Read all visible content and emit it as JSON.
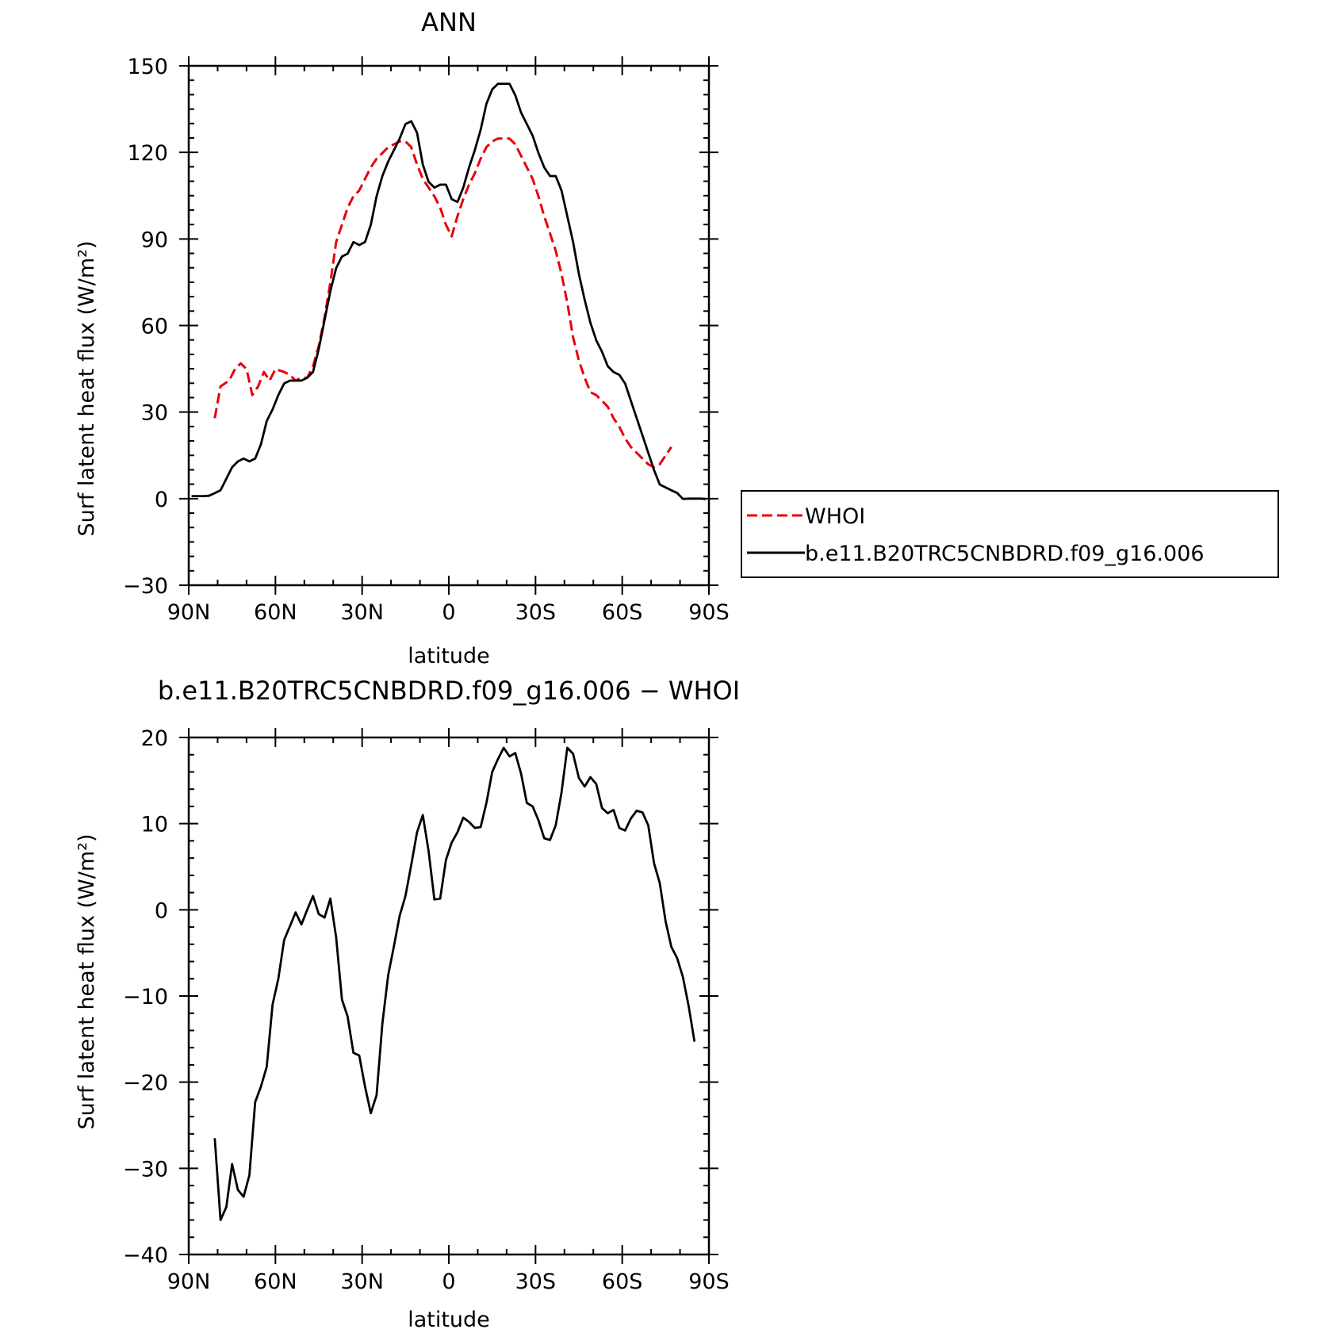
{
  "chart_data": [
    {
      "type": "line",
      "title": "ANN",
      "xlabel": "latitude",
      "ylabel": "Surf latent heat flux (W/m²)",
      "xlim": [
        90,
        -90
      ],
      "ylim": [
        -30,
        150
      ],
      "x_ticks": [
        {
          "value": 90,
          "label": "90N"
        },
        {
          "value": 60,
          "label": "60N"
        },
        {
          "value": 30,
          "label": "30N"
        },
        {
          "value": 0,
          "label": "0"
        },
        {
          "value": -30,
          "label": "30S"
        },
        {
          "value": -60,
          "label": "60S"
        },
        {
          "value": -90,
          "label": "90S"
        }
      ],
      "y_ticks": [
        {
          "value": 150,
          "label": "150"
        },
        {
          "value": 120,
          "label": "120"
        },
        {
          "value": 90,
          "label": "90"
        },
        {
          "value": 60,
          "label": "60"
        },
        {
          "value": 30,
          "label": "30"
        },
        {
          "value": 0,
          "label": "0"
        },
        {
          "value": -30,
          "label": "−30"
        }
      ],
      "legend": {
        "placement": "right"
      },
      "series": [
        {
          "name": "WHOI",
          "color": "#e8000b",
          "dash": "dashed",
          "points": [
            [
              81,
              27.9
            ],
            [
              79,
              38.9
            ],
            [
              76,
              40.9
            ],
            [
              74,
              44.9
            ],
            [
              72,
              46.9
            ],
            [
              70,
              44.9
            ],
            [
              68,
              35.9
            ],
            [
              66,
              38.9
            ],
            [
              64,
              43.9
            ],
            [
              62,
              40.9
            ],
            [
              60,
              44.9
            ],
            [
              57,
              43.9
            ],
            [
              55,
              42.9
            ],
            [
              53,
              40.9
            ],
            [
              51,
              41.9
            ],
            [
              49,
              41.9
            ],
            [
              47,
              45.9
            ],
            [
              45,
              52.9
            ],
            [
              43,
              62.9
            ],
            [
              41,
              74.9
            ],
            [
              39,
              88.9
            ],
            [
              37,
              94.9
            ],
            [
              35,
              100.8
            ],
            [
              33,
              104.8
            ],
            [
              31,
              106.8
            ],
            [
              29,
              110.8
            ],
            [
              27,
              114.8
            ],
            [
              25,
              117.8
            ],
            [
              23,
              119.8
            ],
            [
              21,
              121.8
            ],
            [
              19,
              122.8
            ],
            [
              17,
              123.8
            ],
            [
              15,
              123.8
            ],
            [
              13,
              121.8
            ],
            [
              11,
              115.8
            ],
            [
              9,
              110.8
            ],
            [
              7,
              107.8
            ],
            [
              5,
              104.8
            ],
            [
              3,
              100.8
            ],
            [
              1,
              94.9
            ],
            [
              -1,
              90.9
            ],
            [
              -3,
              97.9
            ],
            [
              -5,
              103.8
            ],
            [
              -7,
              108.8
            ],
            [
              -9,
              112.8
            ],
            [
              -11,
              117.8
            ],
            [
              -13,
              121.8
            ],
            [
              -15,
              123.8
            ],
            [
              -17,
              124.8
            ],
            [
              -19,
              124.8
            ],
            [
              -21,
              124.8
            ],
            [
              -23,
              122.8
            ],
            [
              -25,
              118.8
            ],
            [
              -27,
              114.8
            ],
            [
              -29,
              110.8
            ],
            [
              -31,
              104.8
            ],
            [
              -33,
              97.9
            ],
            [
              -35,
              91.9
            ],
            [
              -37,
              85.9
            ],
            [
              -39,
              77.9
            ],
            [
              -41,
              67.9
            ],
            [
              -43,
              55.9
            ],
            [
              -45,
              47.9
            ],
            [
              -47,
              41.9
            ],
            [
              -49,
              36.9
            ],
            [
              -51,
              35.9
            ],
            [
              -53,
              33.9
            ],
            [
              -55,
              31.9
            ],
            [
              -57,
              27.9
            ],
            [
              -59,
              24.9
            ],
            [
              -61,
              20.9
            ],
            [
              -63,
              17.9
            ],
            [
              -65,
              15.9
            ],
            [
              -67,
              13.9
            ],
            [
              -69,
              11.9
            ],
            [
              -71,
              10.9
            ],
            [
              -73,
              11.9
            ],
            [
              -75,
              14.9
            ],
            [
              -77,
              17.9
            ]
          ]
        },
        {
          "name": "b.e11.B20TRC5CNBDRD.f09_g16.006",
          "color": "#000000",
          "dash": "solid",
          "points": [
            [
              89,
              0.9
            ],
            [
              87,
              0.9
            ],
            [
              85,
              0.9
            ],
            [
              83,
              1.0
            ],
            [
              81,
              1.9
            ],
            [
              79,
              2.9
            ],
            [
              77,
              6.9
            ],
            [
              75,
              10.9
            ],
            [
              73,
              12.9
            ],
            [
              71,
              13.9
            ],
            [
              69,
              12.9
            ],
            [
              67,
              13.9
            ],
            [
              65,
              18.9
            ],
            [
              63,
              26.9
            ],
            [
              61,
              30.9
            ],
            [
              59,
              35.9
            ],
            [
              57,
              39.9
            ],
            [
              55,
              40.9
            ],
            [
              53,
              40.9
            ],
            [
              51,
              40.9
            ],
            [
              49,
              41.9
            ],
            [
              47,
              43.9
            ],
            [
              45,
              51.9
            ],
            [
              43,
              61.9
            ],
            [
              41,
              71.9
            ],
            [
              39,
              79.9
            ],
            [
              37,
              83.9
            ],
            [
              35,
              84.9
            ],
            [
              33,
              88.9
            ],
            [
              31,
              87.9
            ],
            [
              29,
              88.9
            ],
            [
              27,
              94.9
            ],
            [
              25,
              104.8
            ],
            [
              23,
              111.8
            ],
            [
              21,
              116.8
            ],
            [
              19,
              120.8
            ],
            [
              17,
              124.8
            ],
            [
              15,
              129.8
            ],
            [
              13,
              130.8
            ],
            [
              11,
              126.8
            ],
            [
              9,
              115.8
            ],
            [
              7,
              109.8
            ],
            [
              5,
              107.8
            ],
            [
              3,
              108.8
            ],
            [
              1,
              108.8
            ],
            [
              -1,
              103.8
            ],
            [
              -3,
              102.8
            ],
            [
              -5,
              107.8
            ],
            [
              -7,
              114.8
            ],
            [
              -9,
              120.8
            ],
            [
              -11,
              127.8
            ],
            [
              -13,
              136.8
            ],
            [
              -15,
              141.8
            ],
            [
              -17,
              143.8
            ],
            [
              -19,
              143.8
            ],
            [
              -21,
              143.8
            ],
            [
              -23,
              139.8
            ],
            [
              -25,
              133.8
            ],
            [
              -27,
              129.8
            ],
            [
              -29,
              125.8
            ],
            [
              -31,
              119.8
            ],
            [
              -33,
              114.8
            ],
            [
              -35,
              111.8
            ],
            [
              -37,
              111.8
            ],
            [
              -39,
              106.8
            ],
            [
              -41,
              97.9
            ],
            [
              -43,
              88.9
            ],
            [
              -45,
              77.9
            ],
            [
              -47,
              68.9
            ],
            [
              -49,
              60.9
            ],
            [
              -51,
              54.9
            ],
            [
              -53,
              50.9
            ],
            [
              -55,
              45.9
            ],
            [
              -57,
              43.9
            ],
            [
              -59,
              42.9
            ],
            [
              -61,
              39.9
            ],
            [
              -63,
              33.9
            ],
            [
              -65,
              27.9
            ],
            [
              -67,
              21.9
            ],
            [
              -69,
              15.9
            ],
            [
              -71,
              9.9
            ],
            [
              -73,
              4.9
            ],
            [
              -75,
              3.9
            ],
            [
              -77,
              2.9
            ],
            [
              -79,
              2.0
            ],
            [
              -81,
              -0.1
            ],
            [
              -83,
              0.0
            ],
            [
              -85,
              0.0
            ],
            [
              -87,
              0.0
            ],
            [
              -89,
              -0.1
            ]
          ]
        }
      ]
    },
    {
      "type": "line",
      "title": "b.e11.B20TRC5CNBDRD.f09_g16.006 − WHOI",
      "xlabel": "latitude",
      "ylabel": "Surf latent heat flux (W/m²)",
      "xlim": [
        90,
        -90
      ],
      "ylim": [
        -40,
        20
      ],
      "x_ticks": [
        {
          "value": 90,
          "label": "90N"
        },
        {
          "value": 60,
          "label": "60N"
        },
        {
          "value": 30,
          "label": "30N"
        },
        {
          "value": 0,
          "label": "0"
        },
        {
          "value": -30,
          "label": "30S"
        },
        {
          "value": -60,
          "label": "60S"
        },
        {
          "value": -90,
          "label": "90S"
        }
      ],
      "y_ticks": [
        {
          "value": 20,
          "label": "20"
        },
        {
          "value": 10,
          "label": "10"
        },
        {
          "value": 0,
          "label": "0"
        },
        {
          "value": -10,
          "label": "−10"
        },
        {
          "value": -20,
          "label": "−20"
        },
        {
          "value": -30,
          "label": "−30"
        },
        {
          "value": -40,
          "label": "−40"
        }
      ],
      "series": [
        {
          "name": "",
          "color": "#000000",
          "dash": "solid",
          "points": [
            [
              81,
              -26.5
            ],
            [
              79,
              -36.0
            ],
            [
              77,
              -34.5
            ],
            [
              75,
              -29.5
            ],
            [
              73,
              -32.5
            ],
            [
              71,
              -33.3
            ],
            [
              69,
              -30.8
            ],
            [
              67,
              -22.3
            ],
            [
              65,
              -20.5
            ],
            [
              63,
              -18.2
            ],
            [
              61,
              -11.0
            ],
            [
              59,
              -8.0
            ],
            [
              57,
              -3.5
            ],
            [
              55,
              -1.9
            ],
            [
              53,
              -0.3
            ],
            [
              51,
              -1.7
            ],
            [
              49,
              0.0
            ],
            [
              47,
              1.6
            ],
            [
              45,
              -0.5
            ],
            [
              43,
              -0.9
            ],
            [
              41,
              1.3
            ],
            [
              39,
              -3.2
            ],
            [
              37,
              -10.4
            ],
            [
              35,
              -12.4
            ],
            [
              33,
              -16.6
            ],
            [
              31,
              -16.9
            ],
            [
              29,
              -20.5
            ],
            [
              27,
              -23.6
            ],
            [
              25,
              -21.5
            ],
            [
              23,
              -13.2
            ],
            [
              21,
              -7.6
            ],
            [
              19,
              -4.2
            ],
            [
              17,
              -0.7
            ],
            [
              15,
              1.6
            ],
            [
              13,
              5.2
            ],
            [
              11,
              9.0
            ],
            [
              9,
              11.0
            ],
            [
              7,
              6.8
            ],
            [
              5,
              1.2
            ],
            [
              3,
              1.3
            ],
            [
              1,
              5.8
            ],
            [
              -1,
              7.8
            ],
            [
              -3,
              9.0
            ],
            [
              -5,
              10.7
            ],
            [
              -7,
              10.2
            ],
            [
              -9,
              9.5
            ],
            [
              -11,
              9.6
            ],
            [
              -13,
              12.4
            ],
            [
              -15,
              16.0
            ],
            [
              -17,
              17.5
            ],
            [
              -19,
              18.8
            ],
            [
              -21,
              17.8
            ],
            [
              -23,
              18.2
            ],
            [
              -25,
              15.8
            ],
            [
              -27,
              12.4
            ],
            [
              -29,
              12.0
            ],
            [
              -31,
              10.4
            ],
            [
              -33,
              8.3
            ],
            [
              -35,
              8.1
            ],
            [
              -37,
              9.8
            ],
            [
              -39,
              13.6
            ],
            [
              -41,
              18.8
            ],
            [
              -43,
              18.1
            ],
            [
              -45,
              15.3
            ],
            [
              -47,
              14.3
            ],
            [
              -49,
              15.4
            ],
            [
              -51,
              14.6
            ],
            [
              -53,
              11.8
            ],
            [
              -55,
              11.2
            ],
            [
              -57,
              11.6
            ],
            [
              -59,
              9.5
            ],
            [
              -61,
              9.2
            ],
            [
              -63,
              10.6
            ],
            [
              -65,
              11.5
            ],
            [
              -67,
              11.3
            ],
            [
              -69,
              9.8
            ],
            [
              -71,
              5.4
            ],
            [
              -73,
              3.1
            ],
            [
              -75,
              -1.3
            ],
            [
              -77,
              -4.3
            ],
            [
              -79,
              -5.6
            ],
            [
              -81,
              -7.8
            ],
            [
              -83,
              -11.2
            ],
            [
              -85,
              -15.3
            ]
          ]
        }
      ]
    }
  ]
}
